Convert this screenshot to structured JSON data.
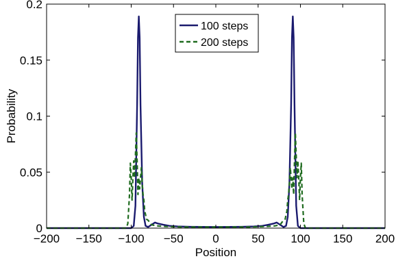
{
  "chart_data": {
    "type": "line",
    "title": "",
    "xlabel": "Position",
    "ylabel": "Probability",
    "xlim": [
      -200,
      200
    ],
    "ylim": [
      0,
      0.2
    ],
    "xticks": [
      -200,
      -150,
      -100,
      -50,
      0,
      50,
      100,
      150,
      200
    ],
    "xtick_labels": [
      "−200",
      "−150",
      "−100",
      "−50",
      "0",
      "50",
      "100",
      "150",
      "200"
    ],
    "yticks": [
      0,
      0.05,
      0.1,
      0.15,
      0.2
    ],
    "ytick_labels": [
      "0",
      "0.05",
      "0.1",
      "0.15",
      "0.2"
    ],
    "grid": false,
    "legend_position": "top-center",
    "series": [
      {
        "name": "100 steps",
        "style": "solid",
        "color": "#1a1a6e",
        "points": [
          [
            -200,
            0
          ],
          [
            -100,
            0
          ],
          [
            -97,
            0.002
          ],
          [
            -95,
            0.02
          ],
          [
            -93,
            0.11
          ],
          [
            -92,
            0.17
          ],
          [
            -91,
            0.189
          ],
          [
            -90,
            0.17
          ],
          [
            -89,
            0.11
          ],
          [
            -87,
            0.04
          ],
          [
            -85,
            0.01
          ],
          [
            -83,
            0.002
          ],
          [
            -80,
            0.001
          ],
          [
            -76,
            0.003
          ],
          [
            -72,
            0.005
          ],
          [
            -68,
            0.004
          ],
          [
            -62,
            0.003
          ],
          [
            -55,
            0.002
          ],
          [
            -45,
            0.0015
          ],
          [
            -30,
            0.0012
          ],
          [
            0,
            0.001
          ],
          [
            30,
            0.0012
          ],
          [
            45,
            0.0015
          ],
          [
            55,
            0.002
          ],
          [
            62,
            0.003
          ],
          [
            68,
            0.004
          ],
          [
            72,
            0.005
          ],
          [
            76,
            0.003
          ],
          [
            80,
            0.001
          ],
          [
            83,
            0.002
          ],
          [
            85,
            0.01
          ],
          [
            87,
            0.04
          ],
          [
            89,
            0.11
          ],
          [
            90,
            0.17
          ],
          [
            91,
            0.189
          ],
          [
            92,
            0.17
          ],
          [
            93,
            0.11
          ],
          [
            95,
            0.02
          ],
          [
            97,
            0.002
          ],
          [
            100,
            0
          ],
          [
            200,
            0
          ]
        ]
      },
      {
        "name": "200 steps",
        "style": "dashed",
        "color": "#1f6b1f",
        "points": [
          [
            -200,
            0
          ],
          [
            -106,
            0
          ],
          [
            -104,
            0.004
          ],
          [
            -102,
            0.03
          ],
          [
            -101,
            0.058
          ],
          [
            -100,
            0.045
          ],
          [
            -99,
            0.025
          ],
          [
            -98,
            0.045
          ],
          [
            -97,
            0.06
          ],
          [
            -96,
            0.045
          ],
          [
            -95,
            0.065
          ],
          [
            -94,
            0.085
          ],
          [
            -93,
            0.06
          ],
          [
            -92,
            0.03
          ],
          [
            -91,
            0.045
          ],
          [
            -90,
            0.035
          ],
          [
            -89,
            0.045
          ],
          [
            -88,
            0.054
          ],
          [
            -87,
            0.04
          ],
          [
            -86,
            0.03
          ],
          [
            -85,
            0.025
          ],
          [
            -84,
            0.015
          ],
          [
            -83,
            0.012
          ],
          [
            -82,
            0.008
          ],
          [
            -80,
            0.007
          ],
          [
            -78,
            0.005
          ],
          [
            -76,
            0.003
          ],
          [
            -70,
            0.002
          ],
          [
            -60,
            0.0015
          ],
          [
            -40,
            0.001
          ],
          [
            0,
            0.001
          ],
          [
            40,
            0.001
          ],
          [
            60,
            0.0015
          ],
          [
            70,
            0.002
          ],
          [
            76,
            0.003
          ],
          [
            78,
            0.005
          ],
          [
            80,
            0.007
          ],
          [
            82,
            0.008
          ],
          [
            83,
            0.012
          ],
          [
            84,
            0.015
          ],
          [
            85,
            0.025
          ],
          [
            86,
            0.03
          ],
          [
            87,
            0.04
          ],
          [
            88,
            0.054
          ],
          [
            89,
            0.045
          ],
          [
            90,
            0.035
          ],
          [
            91,
            0.045
          ],
          [
            92,
            0.03
          ],
          [
            93,
            0.06
          ],
          [
            94,
            0.085
          ],
          [
            95,
            0.065
          ],
          [
            96,
            0.045
          ],
          [
            97,
            0.06
          ],
          [
            98,
            0.045
          ],
          [
            99,
            0.025
          ],
          [
            100,
            0.045
          ],
          [
            101,
            0.058
          ],
          [
            102,
            0.03
          ],
          [
            104,
            0.004
          ],
          [
            106,
            0
          ],
          [
            200,
            0
          ]
        ]
      }
    ]
  }
}
